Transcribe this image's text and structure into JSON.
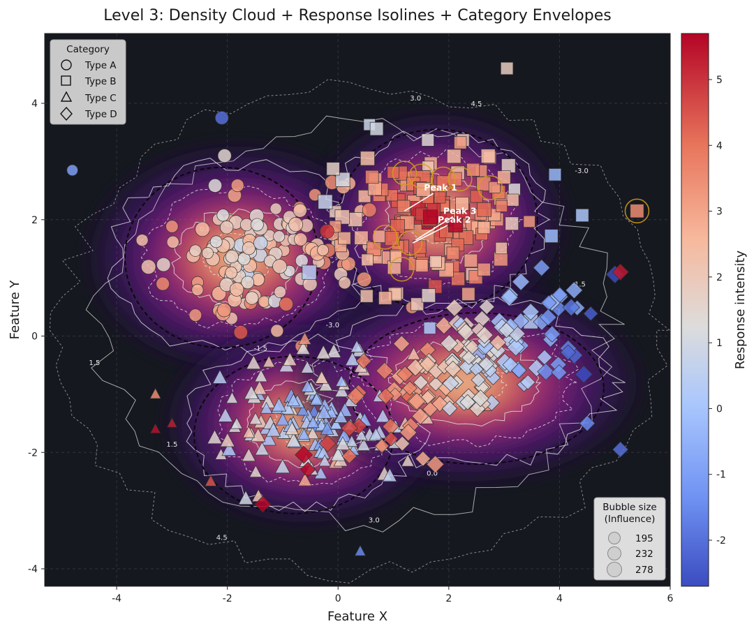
{
  "chart_data": {
    "type": "scatter",
    "title": "Level 3: Density Cloud + Response Isolines + Category Envelopes",
    "xlabel": "Feature X",
    "ylabel": "Feature Y",
    "xlim": [
      -5.3,
      6.0
    ],
    "ylim": [
      -4.3,
      5.2
    ],
    "xticks": [
      -4,
      -2,
      0,
      2,
      4,
      6
    ],
    "yticks": [
      -4,
      -2,
      0,
      2,
      4
    ],
    "grid": true,
    "background": "#16181f",
    "colorbar": {
      "label": "Response intensity",
      "range": [
        -2.7,
        5.7
      ],
      "ticks": [
        -2,
        -1,
        0,
        1,
        2,
        3,
        4,
        5
      ],
      "colors": [
        "#3b4cc0",
        "#6f92f3",
        "#aac7fd",
        "#dddcdc",
        "#f7b89c",
        "#e7745b",
        "#b40426"
      ]
    },
    "legend_category": {
      "title": "Category",
      "position": "top-left",
      "items": [
        {
          "label": "Type A",
          "marker": "circle"
        },
        {
          "label": "Type B",
          "marker": "square"
        },
        {
          "label": "Type C",
          "marker": "triangle"
        },
        {
          "label": "Type D",
          "marker": "diamond"
        }
      ]
    },
    "legend_size": {
      "title_line1": "Bubble size",
      "title_line2": "(Influence)",
      "position": "bottom-right",
      "items": [
        {
          "label": "195",
          "size": 195
        },
        {
          "label": "232",
          "size": 232
        },
        {
          "label": "278",
          "size": 278
        }
      ]
    },
    "categories": [
      {
        "name": "Type A",
        "marker": "circle",
        "center": [
          -1.5,
          1.4
        ],
        "spread": [
          0.9,
          0.65
        ],
        "count": 130,
        "response": [
          0.5,
          3.5
        ],
        "envelope": {
          "cx": -2.1,
          "cy": 1.35,
          "rx": 1.75,
          "ry": 1.55
        }
      },
      {
        "name": "Type B",
        "marker": "square",
        "center": [
          1.7,
          2.0
        ],
        "spread": [
          0.9,
          0.7
        ],
        "count": 150,
        "response": [
          0.0,
          5.3
        ],
        "envelope": {
          "cx": 1.8,
          "cy": 2.0,
          "rx": 1.8,
          "ry": 1.55
        }
      },
      {
        "name": "Type C",
        "marker": "triangle",
        "center": [
          -0.4,
          -1.4
        ],
        "spread": [
          0.9,
          0.55
        ],
        "count": 140,
        "response": [
          -1.5,
          2.5
        ],
        "envelope": {
          "cx": -0.8,
          "cy": -1.7,
          "rx": 1.8,
          "ry": 1.35
        }
      },
      {
        "name": "Type D",
        "marker": "diamond",
        "center": [
          2.2,
          -0.6
        ],
        "spread": [
          1.2,
          0.65
        ],
        "count": 150,
        "response": [
          -2.5,
          4.5
        ],
        "envelope": {
          "cx": 2.5,
          "cy": -0.9,
          "rx": 2.3,
          "ry": 1.3
        }
      }
    ],
    "outliers": [
      {
        "x": -2.1,
        "y": 3.75,
        "category": "Type A",
        "value": -2.0,
        "size": 230
      },
      {
        "x": -4.8,
        "y": 2.85,
        "category": "Type A",
        "value": -1.0,
        "size": 160
      },
      {
        "x": -2.05,
        "y": 3.1,
        "category": "Type A",
        "value": 1.5,
        "size": 240
      },
      {
        "x": 3.05,
        "y": 4.6,
        "category": "Type B",
        "value": 1.8,
        "size": 200
      },
      {
        "x": 5.4,
        "y": 2.15,
        "category": "Type B",
        "value": 3.5,
        "size": 240
      },
      {
        "x": 5.1,
        "y": 1.1,
        "category": "Type D",
        "value": 5.4,
        "size": 240
      },
      {
        "x": 5.1,
        "y": -1.95,
        "category": "Type D",
        "value": -2.0,
        "size": 220
      },
      {
        "x": 4.5,
        "y": -1.5,
        "category": "Type D",
        "value": -1.5,
        "size": 220
      },
      {
        "x": -3.3,
        "y": -1.6,
        "category": "Type C",
        "value": 5.5,
        "size": 120
      },
      {
        "x": -3.0,
        "y": -1.5,
        "category": "Type C",
        "value": 5.3,
        "size": 120
      },
      {
        "x": -3.3,
        "y": -1.0,
        "category": "Type C",
        "value": 3.5,
        "size": 150
      },
      {
        "x": -2.3,
        "y": -2.5,
        "category": "Type C",
        "value": 4.5,
        "size": 170
      },
      {
        "x": 0.4,
        "y": -3.7,
        "category": "Type C",
        "value": -1.5,
        "size": 150
      },
      {
        "x": -1.4,
        "y": 1.6,
        "category": "Type A",
        "value": 0.8,
        "size": 250
      },
      {
        "x": -0.2,
        "y": 1.8,
        "category": "Type A",
        "value": 5.0,
        "size": 260
      }
    ],
    "density_peaks": [
      {
        "x": -1.8,
        "y": 1.35,
        "weight": 1.0,
        "sx": 1.2,
        "sy": 0.85
      },
      {
        "x": 1.8,
        "y": 2.0,
        "weight": 1.0,
        "sx": 1.0,
        "sy": 0.8
      },
      {
        "x": -0.6,
        "y": -1.5,
        "weight": 1.0,
        "sx": 1.1,
        "sy": 0.75
      },
      {
        "x": 2.3,
        "y": -0.8,
        "weight": 0.85,
        "sx": 1.4,
        "sy": 0.75
      }
    ],
    "isoline_labels": [
      "-3.0",
      "-1.5",
      "0.0",
      "1.5",
      "3.0",
      "4.5"
    ],
    "annotations": [
      {
        "text": "Peak 1",
        "x": 1.85,
        "y": 2.5,
        "arrow_to": [
          1.2,
          2.15
        ]
      },
      {
        "text": "Peak 2",
        "x": 2.1,
        "y": 1.95,
        "arrow_to": [
          1.35,
          1.6
        ]
      },
      {
        "text": "Peak 3",
        "x": 2.2,
        "y": 2.1,
        "arrow_to": [
          1.4,
          1.65
        ]
      }
    ]
  }
}
